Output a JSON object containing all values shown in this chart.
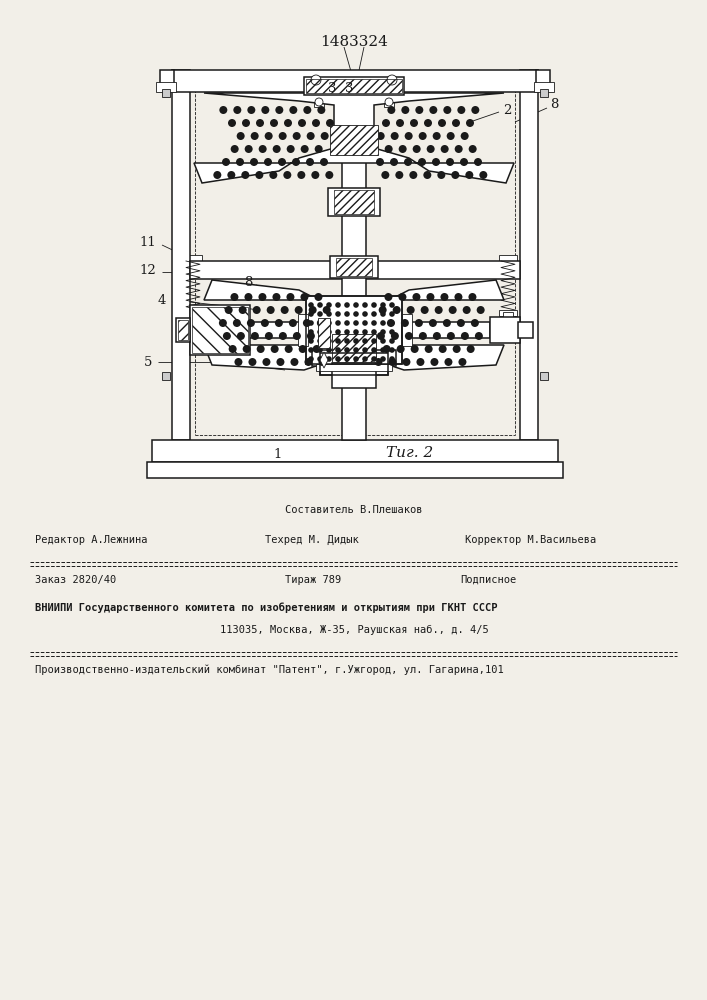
{
  "patent_number": "1483324",
  "figure_label": "Τиг. 2",
  "bg": "#f2efe8",
  "lc": "#1a1a1a",
  "footer": {
    "compositor": "Составитель В.Плешаков",
    "editor_label": "Редактор А.Лежнина",
    "tech_label": "Техред М. Дидык",
    "corr_label": "Корректор М.Васильева",
    "order": "Заказ 2820/40",
    "circulation": "Тираж 789",
    "subscription": "Подписное",
    "vniip1": "ВНИИПИ Государственного комитета по изобретениям и открытиям при ГКНТ СССР",
    "vniip2": "113035, Москва, Ж-35, Раушская наб., д. 4/5",
    "proizv": "Производственно-издательский комбинат \"Патент\", г.Ужгород, ул. Гагарина,101"
  }
}
